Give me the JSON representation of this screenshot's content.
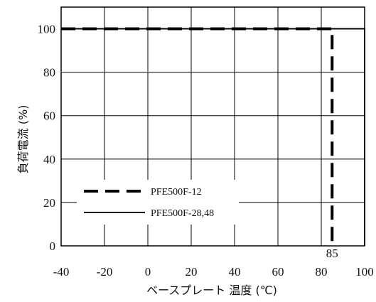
{
  "chart_data": {
    "type": "line",
    "xlabel": "ベースプレート 温度 (℃)",
    "ylabel": "負荷電流 (%)",
    "xlim": [
      -40,
      100
    ],
    "ylim": [
      0,
      110
    ],
    "x_ticks": [
      "-40",
      "-20",
      "0",
      "20",
      "40",
      "60",
      "80",
      "100"
    ],
    "y_ticks": [
      "0",
      "20",
      "40",
      "60",
      "80",
      "100"
    ],
    "grid": true,
    "legend_position": "bottom-left",
    "series": [
      {
        "name": "PFE500F-12",
        "style": "dashed",
        "color": "#000000",
        "points": [
          [
            -40,
            100
          ],
          [
            85,
            100
          ],
          [
            85,
            0
          ]
        ]
      },
      {
        "name": "PFE500F-28,48",
        "style": "solid",
        "color": "#000000",
        "points": [
          [
            -40,
            100
          ],
          [
            100,
            100
          ],
          [
            100,
            0
          ]
        ]
      }
    ],
    "annotations": [
      {
        "text": "85",
        "x": 85,
        "y": 0
      }
    ]
  }
}
